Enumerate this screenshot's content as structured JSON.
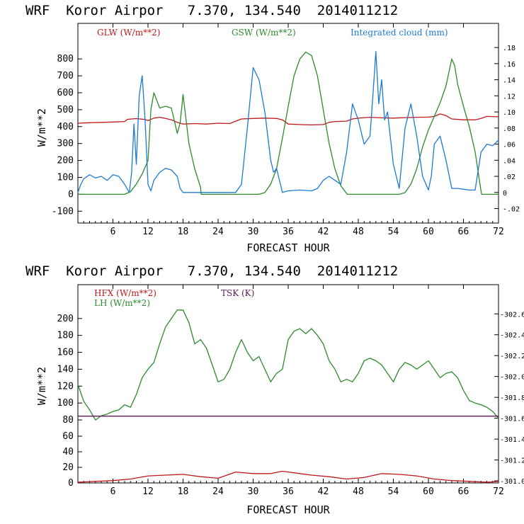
{
  "colors": {
    "red": "#c0181c",
    "green": "#2d8a2d",
    "blue": "#1c7ad4",
    "purple": "#5a1a5a"
  },
  "chart_data": [
    {
      "type": "line",
      "title": "WRF  Koror Airpor   7.370, 134.540  2014011212",
      "xlabel": "FORECAST HOUR",
      "ylabel": "W/m**2",
      "xlim": [
        0,
        72
      ],
      "ylim": [
        -170,
        1010
      ],
      "y2lim": [
        -0.038,
        0.21
      ],
      "xticks": [
        "6",
        "12",
        "18",
        "24",
        "30",
        "36",
        "42",
        "48",
        "54",
        "60",
        "66",
        "72"
      ],
      "yticks": [
        "-100",
        "0",
        "100",
        "200",
        "300",
        "400",
        "500",
        "600",
        "700",
        "800"
      ],
      "y2ticks": [
        "-.02",
        "0",
        ".02",
        ".04",
        ".06",
        ".08",
        ".10",
        ".12",
        ".14",
        ".16",
        ".18"
      ],
      "legend": [
        "GLW (W/m**2)",
        "GSW (W/m**2)",
        "Integrated cloud (mm)"
      ],
      "series": [
        {
          "name": "GLW (W/m**2)",
          "axis": "left",
          "color": "red",
          "x": [
            0,
            2,
            4,
            6,
            8,
            8.5,
            10,
            11.5,
            12,
            13,
            14,
            15,
            16,
            17,
            18,
            20,
            22,
            24,
            26,
            27,
            28,
            30,
            32,
            34,
            35,
            36,
            38,
            40,
            42,
            43,
            44,
            46,
            47,
            48,
            50,
            52,
            54,
            56,
            58,
            60,
            61,
            62,
            63,
            64,
            66,
            68,
            69,
            70,
            72
          ],
          "y": [
            420,
            423,
            425,
            427,
            430,
            443,
            447,
            442,
            435,
            450,
            455,
            448,
            440,
            425,
            415,
            418,
            415,
            420,
            418,
            432,
            445,
            448,
            450,
            448,
            440,
            415,
            412,
            410,
            412,
            425,
            430,
            432,
            445,
            450,
            455,
            452,
            450,
            453,
            455,
            456,
            460,
            475,
            465,
            445,
            440,
            440,
            448,
            460,
            458
          ]
        },
        {
          "name": "GSW (W/m**2)",
          "axis": "left",
          "color": "green",
          "x": [
            0,
            8,
            9,
            10,
            11,
            12,
            12.5,
            13,
            14,
            15,
            16,
            17,
            17.5,
            18,
            19,
            20,
            21,
            21.1,
            31,
            32,
            33,
            34,
            35,
            36,
            37,
            38,
            39,
            40,
            41,
            42,
            43,
            44,
            45,
            46,
            46.1,
            55,
            56,
            57,
            58,
            59,
            60,
            61,
            62,
            63,
            64,
            64.5,
            65,
            66,
            67,
            68,
            69,
            69.1,
            72
          ],
          "y": [
            0,
            0,
            15,
            60,
            120,
            200,
            500,
            600,
            510,
            520,
            510,
            360,
            420,
            590,
            300,
            150,
            40,
            0,
            0,
            10,
            60,
            150,
            330,
            520,
            700,
            800,
            840,
            820,
            700,
            500,
            300,
            150,
            50,
            5,
            0,
            0,
            10,
            60,
            150,
            280,
            380,
            460,
            540,
            640,
            800,
            760,
            650,
            520,
            400,
            250,
            20,
            0,
            0
          ]
        },
        {
          "name": "Integrated cloud (mm)",
          "axis": "right",
          "color": "blue",
          "x": [
            0,
            0.5,
            1,
            2,
            3,
            4,
            5,
            6,
            7,
            8,
            8.8,
            9.2,
            9.6,
            10,
            10.5,
            11,
            11.5,
            12,
            12.5,
            13,
            14,
            15,
            16,
            17,
            17.5,
            18,
            27,
            28,
            29,
            30,
            31,
            32,
            33,
            33.5,
            34,
            35,
            36,
            38,
            40,
            41,
            42,
            43,
            44,
            45,
            46,
            47,
            48,
            49,
            50,
            50.5,
            51,
            51.5,
            52,
            52.5,
            53,
            54,
            55,
            56,
            57,
            58,
            59,
            60,
            60.5,
            61,
            62,
            63,
            64,
            65,
            66,
            67,
            68,
            69,
            70,
            71,
            72
          ],
          "y": [
            0,
            0.01,
            0.017,
            0.022,
            0.018,
            0.02,
            0.015,
            0.022,
            0.02,
            0.01,
            0,
            0.025,
            0.085,
            0.035,
            0.12,
            0.145,
            0.09,
            0.01,
            0.002,
            0.015,
            0.025,
            0.03,
            0.028,
            0.02,
            0.005,
            0,
            0,
            0.01,
            0.08,
            0.155,
            0.14,
            0.1,
            0.04,
            0.025,
            0.03,
            0,
            0.002,
            0.003,
            0.002,
            0.005,
            0.015,
            0.02,
            0.015,
            0.01,
            0.05,
            0.11,
            0.09,
            0.06,
            0.07,
            0.12,
            0.175,
            0.11,
            0.14,
            0.09,
            0.1,
            0.035,
            0.005,
            0.08,
            0.11,
            0.07,
            0.02,
            0.003,
            0.02,
            0.06,
            0.07,
            0.04,
            0.005,
            0.005,
            0.004,
            0.003,
            0.003,
            0.05,
            0.06,
            0.058,
            0.065
          ]
        }
      ]
    },
    {
      "type": "line",
      "title": "WRF  Koror Airpor   7.370, 134.540  2014011212",
      "xlabel": "FORECAST HOUR",
      "ylabel": "W/m**2",
      "xlim": [
        0,
        72
      ],
      "y2lim": [
        300.98,
        302.88
      ],
      "xticks": [
        "6",
        "12",
        "18",
        "24",
        "30",
        "36",
        "42",
        "48",
        "54",
        "60",
        "66",
        "72"
      ],
      "upper_ylim": [
        70,
        240
      ],
      "upper_yticks": [
        "80",
        "100",
        "120",
        "140",
        "160",
        "180",
        "200"
      ],
      "lower_ylim": [
        0,
        70
      ],
      "lower_yticks": [
        "0",
        "20",
        "40",
        "60"
      ],
      "y2ticks": [
        "301.0",
        "301.2",
        "301.4",
        "301.6",
        "301.8",
        "302.0",
        "302.2",
        "302.4",
        "302.6"
      ],
      "legend": [
        "HFX (W/m**2)",
        "LH  (W/m**2)",
        "TSK (K)"
      ],
      "series": [
        {
          "name": "LH  (W/m**2)",
          "panel": "upper",
          "color": "green",
          "x": [
            0,
            1,
            2,
            3,
            4,
            5,
            6,
            7,
            8,
            9,
            10,
            11,
            12,
            13,
            14,
            15,
            16,
            17,
            18,
            19,
            20,
            21,
            22,
            23,
            24,
            25,
            26,
            27,
            28,
            29,
            30,
            31,
            32,
            33,
            34,
            35,
            36,
            37,
            38,
            39,
            40,
            41,
            42,
            43,
            44,
            45,
            46,
            47,
            48,
            49,
            50,
            51,
            52,
            53,
            54,
            55,
            56,
            57,
            58,
            59,
            60,
            61,
            62,
            63,
            64,
            65,
            66,
            67,
            68,
            69,
            70,
            71,
            72
          ],
          "y": [
            122,
            102,
            92,
            80,
            85,
            87,
            90,
            92,
            98,
            95,
            110,
            130,
            140,
            148,
            170,
            190,
            200,
            210,
            210,
            195,
            170,
            175,
            165,
            145,
            125,
            128,
            140,
            160,
            175,
            160,
            150,
            155,
            140,
            125,
            135,
            140,
            175,
            185,
            188,
            182,
            188,
            180,
            170,
            150,
            140,
            125,
            128,
            125,
            135,
            150,
            153,
            150,
            145,
            135,
            125,
            140,
            148,
            145,
            140,
            145,
            150,
            140,
            130,
            135,
            137,
            130,
            115,
            103,
            100,
            98,
            95,
            90,
            82
          ]
        },
        {
          "name": "HFX (W/m**2)",
          "panel": "lower",
          "color": "red",
          "x": [
            0,
            3,
            6,
            9,
            12,
            15,
            18,
            21,
            24,
            27,
            30,
            33,
            35,
            37,
            40,
            43,
            46,
            49,
            52,
            55,
            58,
            61,
            64,
            67,
            70,
            72
          ],
          "y": [
            1,
            2,
            3,
            5,
            9,
            10,
            11,
            8,
            6,
            14,
            12,
            12,
            15,
            13,
            10,
            8,
            5,
            7,
            12,
            11,
            9,
            5,
            3,
            2,
            1,
            2
          ]
        },
        {
          "name": "TSK (K)",
          "panel": "both",
          "axis": "right",
          "color": "purple",
          "x": [
            0,
            72
          ],
          "y": [
            301.62,
            301.62
          ]
        }
      ]
    }
  ]
}
